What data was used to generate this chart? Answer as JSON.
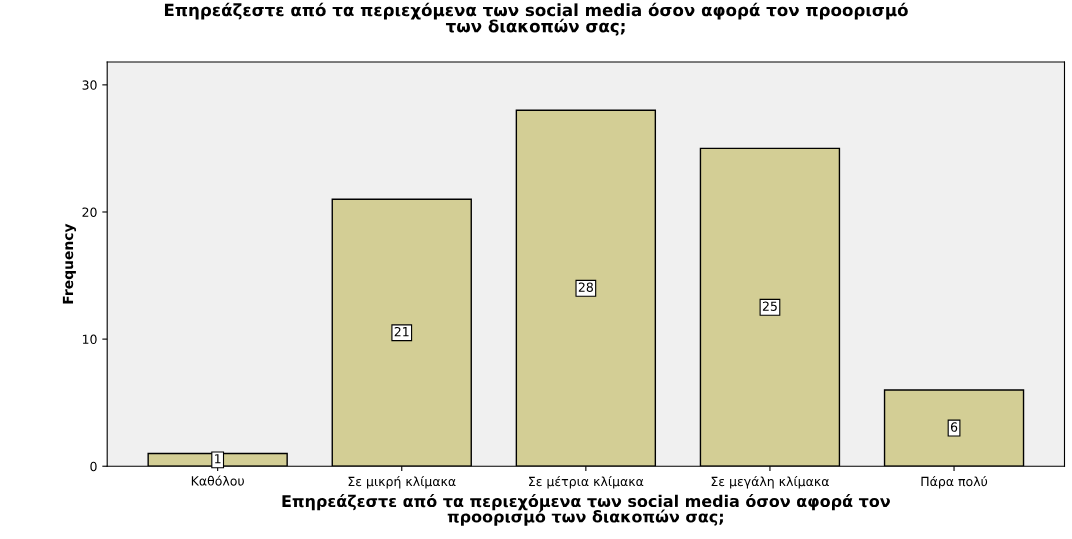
{
  "chart_data": {
    "type": "bar",
    "title": "Επηρεάζεστε από τα περιεχόμενα των social media όσον αφορά τον προορισμό\nτων διακοπών σας;",
    "xlabel": "Επηρεάζεστε από τα περιεχόμενα των social media όσον αφορά τον\nπροορισμό των διακοπών σας;",
    "ylabel": "Frequency",
    "categories": [
      "Καθόλου",
      "Σε μικρή κλίμακα",
      "Σε μέτρια κλίμακα",
      "Σε μεγάλη κλίμακα",
      "Πάρα πολύ"
    ],
    "values": [
      1,
      21,
      28,
      25,
      6
    ],
    "color": "#d3ce95",
    "ylim": [
      0,
      31.8
    ],
    "yticks": [
      0,
      10,
      20,
      30
    ],
    "grid": false,
    "data_labels": true
  }
}
